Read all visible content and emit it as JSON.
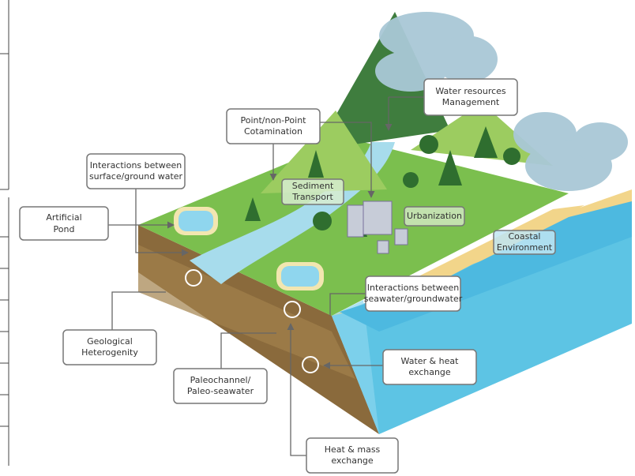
{
  "nodes": [
    {
      "lines": [
        "Water resources",
        "Management"
      ]
    },
    {
      "lines": [
        "Point/non-Point",
        "Cotamination"
      ]
    },
    {
      "lines": [
        "Interactions between",
        "surface/ground water"
      ]
    },
    {
      "lines": [
        "Sediment",
        "Transport"
      ]
    },
    {
      "lines": [
        "Artificial",
        "Pond"
      ]
    },
    {
      "lines": [
        "Urbanization"
      ]
    },
    {
      "lines": [
        "Coastal",
        "Environment"
      ]
    },
    {
      "lines": [
        "Interactions between",
        "seawater/groundwater"
      ]
    },
    {
      "lines": [
        "Geological",
        "Heterogenity"
      ]
    },
    {
      "lines": [
        "Water & heat",
        "exchange"
      ]
    },
    {
      "lines": [
        "Paleochannel/",
        "Paleo-seawater"
      ]
    },
    {
      "lines": [
        "Heat & mass",
        "exchange"
      ]
    }
  ]
}
